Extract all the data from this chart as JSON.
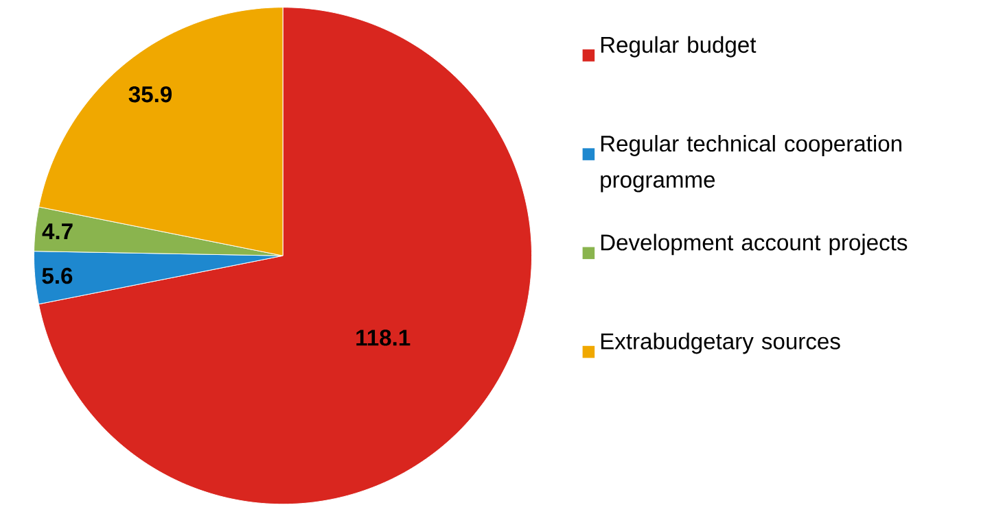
{
  "chart_data": {
    "type": "pie",
    "categories": [
      "Regular budget",
      "Regular technical cooperation programme",
      "Development account projects",
      "Extrabudgetary sources"
    ],
    "values": [
      118.1,
      5.6,
      4.7,
      35.9
    ],
    "colors": [
      "#d9261f",
      "#1e88cf",
      "#8ab44e",
      "#f0a800"
    ],
    "data_labels": true,
    "legend": "right"
  }
}
